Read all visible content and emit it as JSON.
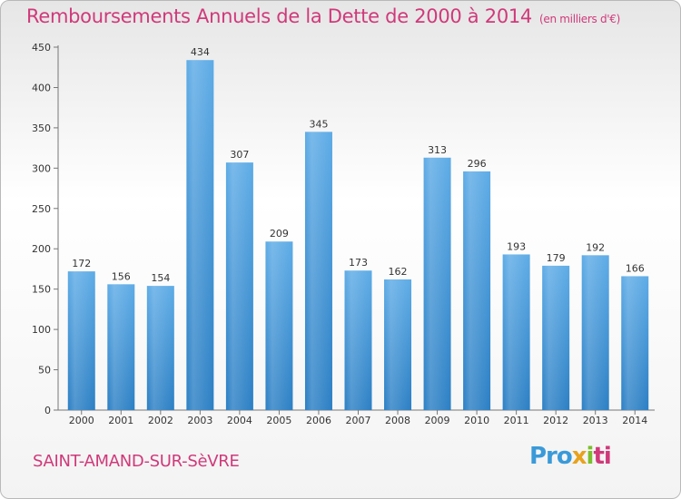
{
  "chart_data": {
    "type": "bar",
    "title": "Remboursements Annuels de la Dette de 2000 à 2014",
    "unit_note": "(en milliers d'€)",
    "categories": [
      "2000",
      "2001",
      "2002",
      "2003",
      "2004",
      "2005",
      "2006",
      "2007",
      "2008",
      "2009",
      "2010",
      "2011",
      "2012",
      "2013",
      "2014"
    ],
    "values": [
      172,
      156,
      154,
      434,
      307,
      209,
      345,
      173,
      162,
      313,
      296,
      193,
      179,
      192,
      166
    ],
    "ylim": [
      0,
      450
    ],
    "yticks": [
      0,
      50,
      100,
      150,
      200,
      250,
      300,
      350,
      400,
      450
    ],
    "grid": false,
    "bar_color": "#3a93d9",
    "label_color": "#333333"
  },
  "footer": {
    "town": "SAINT-AMAND-SUR-SèVRE",
    "logo_parts": [
      "Pro",
      "x",
      "i",
      "ti"
    ]
  }
}
